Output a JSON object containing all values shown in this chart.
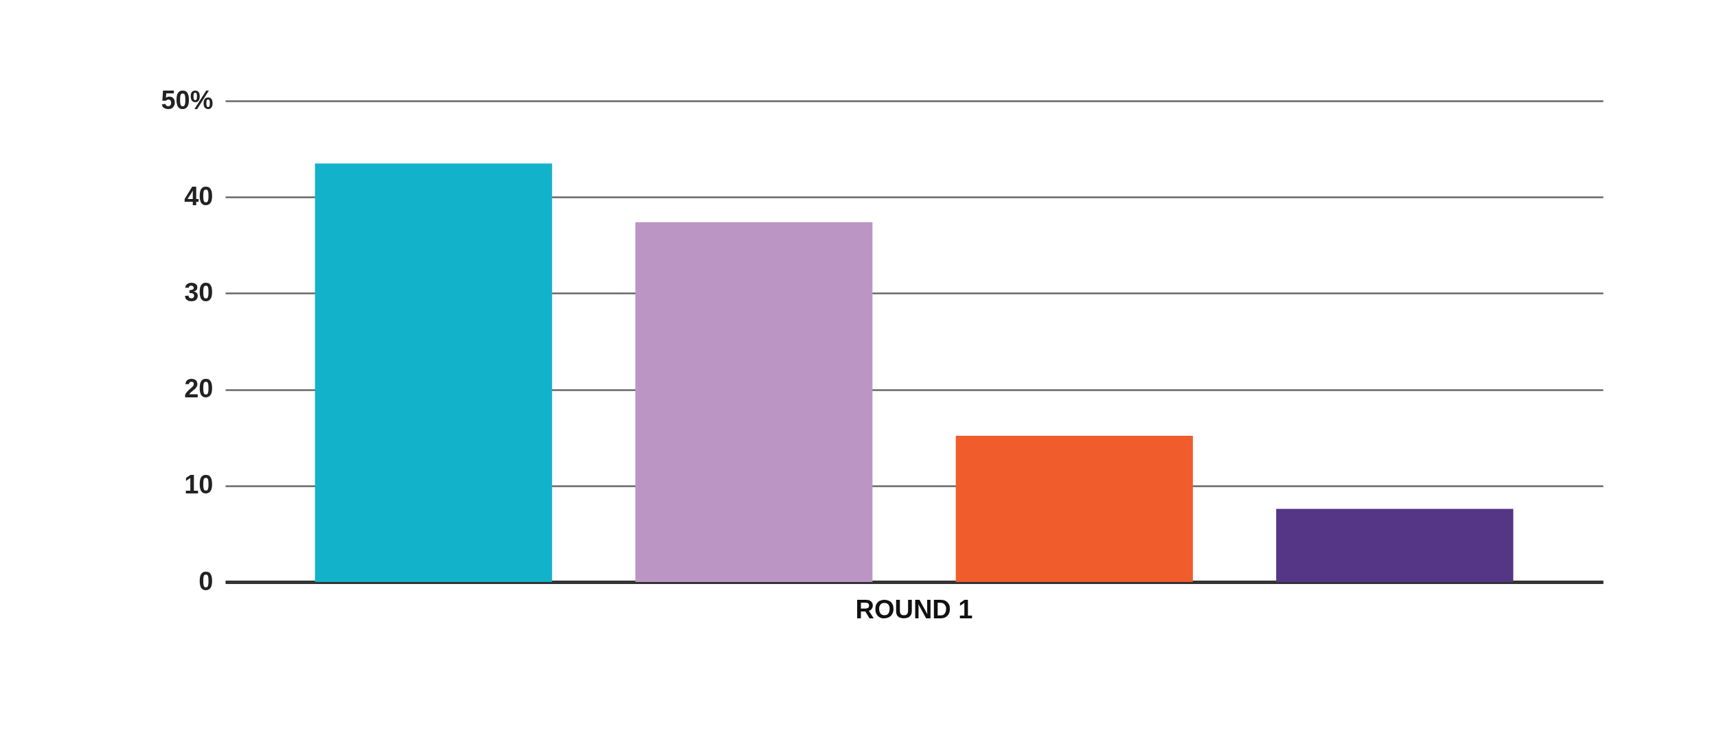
{
  "chart_data": {
    "type": "bar",
    "categories": [
      "ROUND 1"
    ],
    "series": [
      {
        "color": "#13b2cb",
        "values": [
          43.5
        ]
      },
      {
        "color": "#bb96c5",
        "values": [
          37.4
        ]
      },
      {
        "color": "#f05c2c",
        "values": [
          15.2
        ]
      },
      {
        "color": "#553586",
        "values": [
          7.6
        ]
      }
    ],
    "ylim": [
      0,
      50
    ],
    "yticks": [
      0,
      10,
      20,
      30,
      40,
      {
        "value": 50,
        "label": "50%"
      }
    ],
    "grid": "y"
  }
}
